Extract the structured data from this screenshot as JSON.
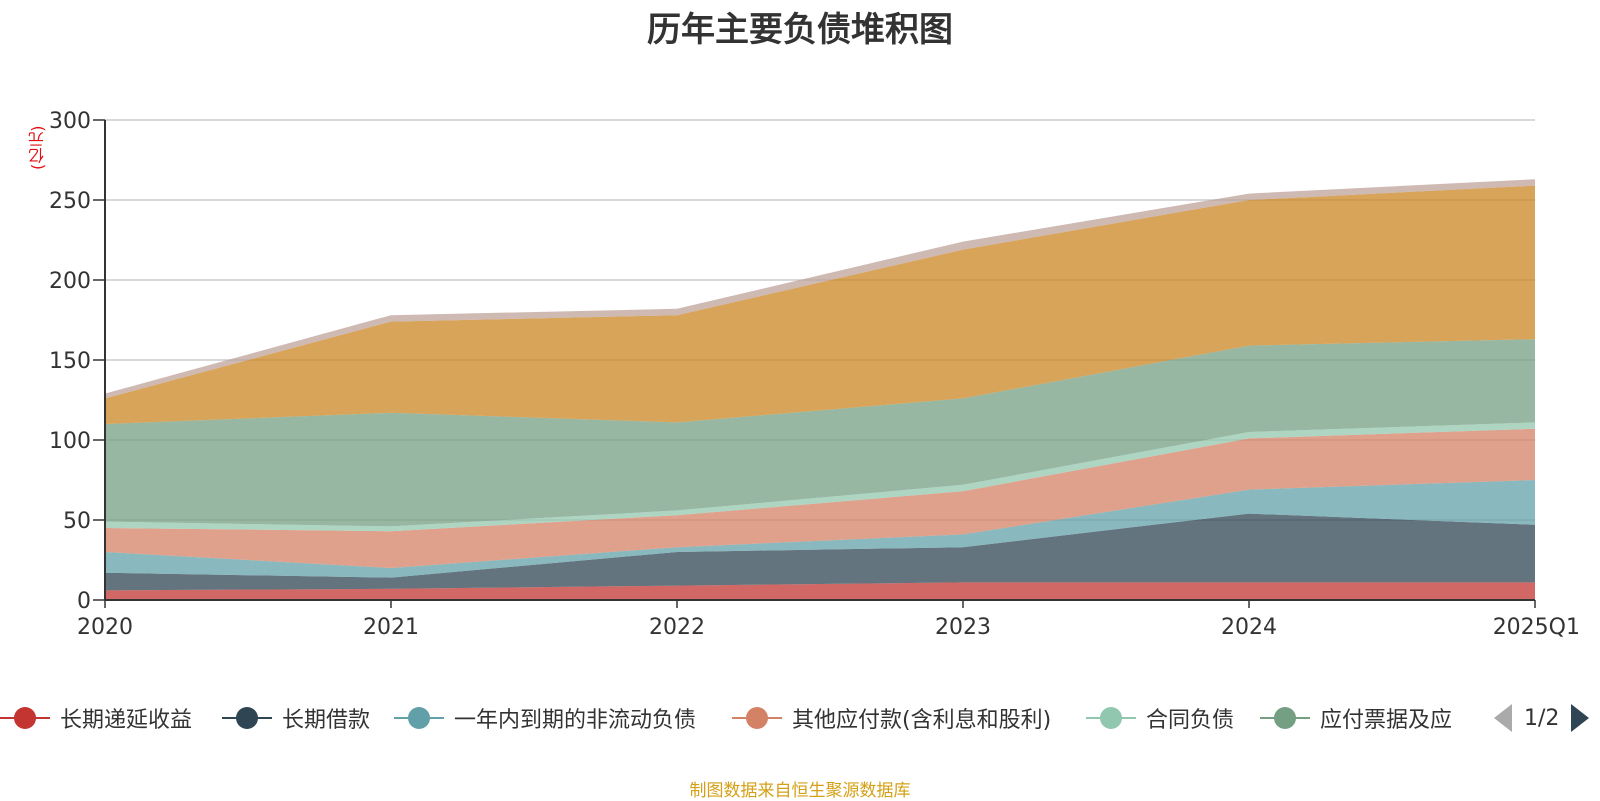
{
  "chart_data": {
    "type": "area",
    "title": "历年主要负债堆积图",
    "unit": "(亿元)",
    "categories": [
      "2020",
      "2021",
      "2022",
      "2023",
      "2024",
      "2025Q1"
    ],
    "ylim": [
      0,
      300
    ],
    "yticks": [
      0,
      50,
      100,
      150,
      200,
      250,
      300
    ],
    "grid": true,
    "stacked": true,
    "series": [
      {
        "name": "长期递延收益",
        "color": "#c23531",
        "values": [
          6,
          7,
          9,
          11,
          11,
          11
        ]
      },
      {
        "name": "长期借款",
        "color": "#2f4554",
        "values": [
          11,
          7,
          21,
          22,
          43,
          36
        ]
      },
      {
        "name": "一年内到期的非流动负债",
        "color": "#61a0a8",
        "values": [
          13,
          6,
          3,
          8,
          15,
          28
        ]
      },
      {
        "name": "其他应付款(含利息和股利)",
        "color": "#d48265",
        "values": [
          15,
          23,
          20,
          27,
          32,
          32
        ]
      },
      {
        "name": "合同负债",
        "color": "#91c7ae",
        "values": [
          4,
          3,
          3,
          4,
          4,
          4
        ]
      },
      {
        "name": "应付票据及应付账款",
        "color": "#749f83",
        "values": [
          61,
          71,
          55,
          54,
          54,
          52
        ]
      },
      {
        "name": "",
        "color": "#ca8622",
        "values": [
          16,
          57,
          67,
          93,
          91,
          96
        ]
      },
      {
        "name": "",
        "color": "#bda29a",
        "values": [
          3,
          4,
          4,
          5,
          4,
          4
        ]
      }
    ]
  },
  "legend": {
    "items": [
      {
        "label": "长期递延收益",
        "color": "#c23531"
      },
      {
        "label": "长期借款",
        "color": "#2f4554"
      },
      {
        "label": "一年内到期的非流动负债",
        "color": "#61a0a8"
      },
      {
        "label": "其他应付款(含利息和股利)",
        "color": "#d48265"
      },
      {
        "label": "合同负债",
        "color": "#91c7ae"
      },
      {
        "label": "应付票据及应",
        "color": "#749f83"
      }
    ],
    "page": "1/2"
  },
  "source": "制图数据来自恒生聚源数据库"
}
